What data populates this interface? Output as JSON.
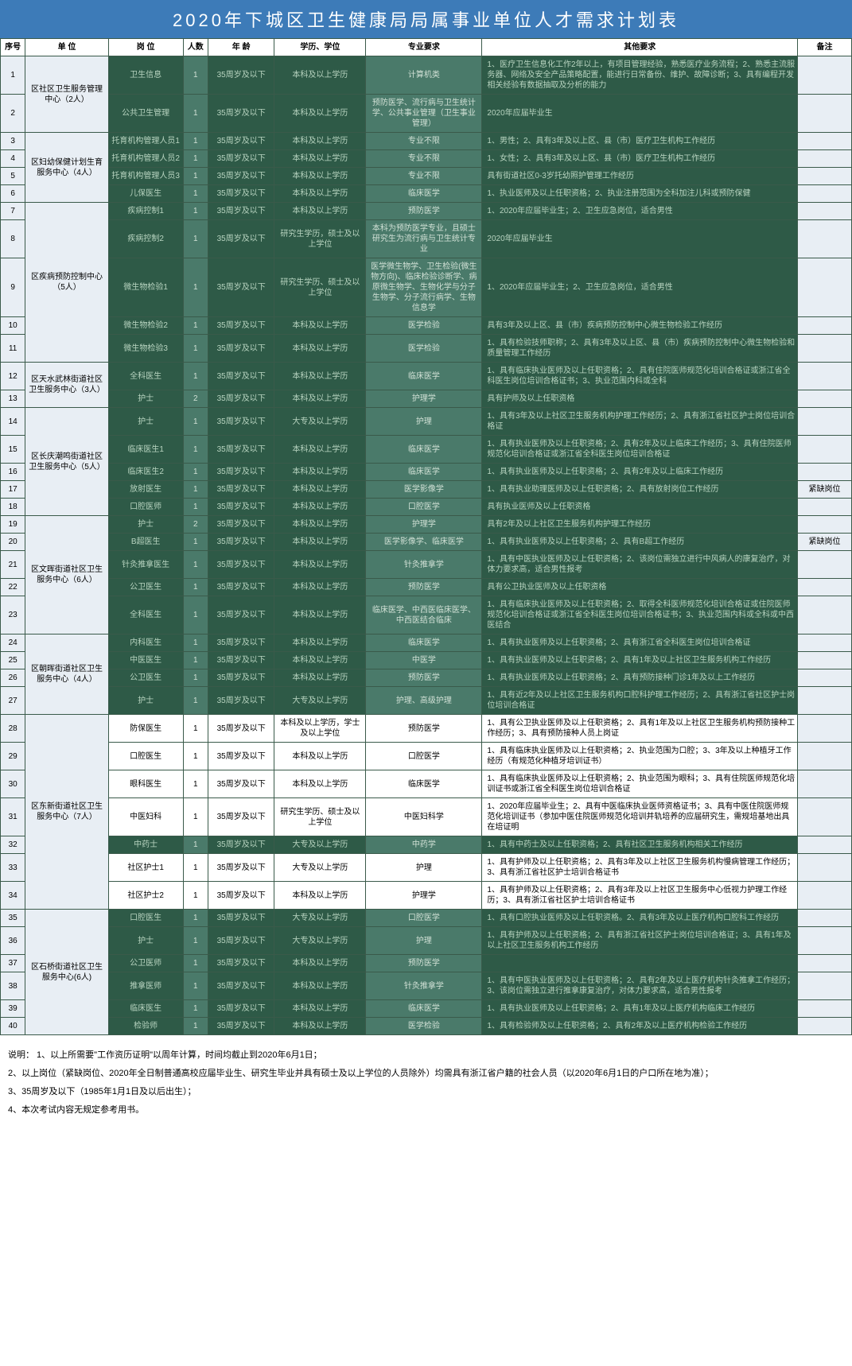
{
  "title": "2020年下城区卫生健康局局属事业单位人才需求计划表",
  "columns": [
    "序号",
    "单 位",
    "岗 位",
    "人数",
    "年 龄",
    "学历、学位",
    "专业要求",
    "其他要求",
    "备注"
  ],
  "colors": {
    "header_bg": "#3d7bb8",
    "green_bg": "#2e5a47",
    "teal_bg": "#4a7a6a",
    "green_text": "#b8d4c0",
    "teal_text": "#d0e0d5"
  },
  "rows": [
    {
      "seq": "1",
      "unit": "区社区卫生服务管理中心（2人）",
      "unit_rowspan": 2,
      "pos": "卫生信息",
      "num": "1",
      "age": "35周岁及以下",
      "edu": "本科及以上学历",
      "major": "计算机类",
      "other": "1、医疗卫生信息化工作2年以上，有项目管理经验，熟悉医疗业务流程；2、熟悉主流服务器、网络及安全产品策略配置，能进行日常备份、维护、故障诊断；3、具有编程开发相关经验有数据抽取及分析的能力",
      "remark": ""
    },
    {
      "seq": "2",
      "pos": "公共卫生管理",
      "num": "1",
      "age": "35周岁及以下",
      "edu": "本科及以上学历",
      "major": "预防医学、流行病与卫生统计学、公共事业管理（卫生事业管理）",
      "other": "2020年应届毕业生",
      "remark": ""
    },
    {
      "seq": "3",
      "unit": "区妇幼保健计划生育服务中心（4人）",
      "unit_rowspan": 4,
      "pos": "托育机构管理人员1",
      "num": "1",
      "age": "35周岁及以下",
      "edu": "本科及以上学历",
      "major": "专业不限",
      "other": "1、男性；2、具有3年及以上区、县（市）医疗卫生机构工作经历",
      "remark": ""
    },
    {
      "seq": "4",
      "pos": "托育机构管理人员2",
      "num": "1",
      "age": "35周岁及以下",
      "edu": "本科及以上学历",
      "major": "专业不限",
      "other": "1、女性；2、具有3年及以上区、县（市）医疗卫生机构工作经历",
      "remark": ""
    },
    {
      "seq": "5",
      "pos": "托育机构管理人员3",
      "num": "1",
      "age": "35周岁及以下",
      "edu": "本科及以上学历",
      "major": "专业不限",
      "other": "具有街道社区0-3岁托幼照护管理工作经历",
      "remark": ""
    },
    {
      "seq": "6",
      "pos": "儿保医生",
      "num": "1",
      "age": "35周岁及以下",
      "edu": "本科及以上学历",
      "major": "临床医学",
      "other": "1、执业医师及以上任职资格；2、执业注册范围为全科加注儿科或预防保健",
      "remark": ""
    },
    {
      "seq": "7",
      "unit": "区疾病预防控制中心（5人）",
      "unit_rowspan": 5,
      "pos": "疾病控制1",
      "num": "1",
      "age": "35周岁及以下",
      "edu": "本科及以上学历",
      "major": "预防医学",
      "other": "1、2020年应届毕业生；2、卫生应急岗位，适合男性",
      "remark": ""
    },
    {
      "seq": "8",
      "pos": "疾病控制2",
      "num": "1",
      "age": "35周岁及以下",
      "edu": "研究生学历，硕士及以上学位",
      "major": "本科为预防医学专业，且硕士研究生为流行病与卫生统计专业",
      "other": "2020年应届毕业生",
      "remark": ""
    },
    {
      "seq": "9",
      "pos": "微生物检验1",
      "num": "1",
      "age": "35周岁及以下",
      "edu": "研究生学历、硕士及以上学位",
      "major": "医学微生物学、卫生检验(微生物方向)、临床检验诊断学、病原微生物学、生物化学与分子生物学、分子流行病学、生物信息学",
      "other": "1、2020年应届毕业生；2、卫生应急岗位，适合男性",
      "remark": ""
    },
    {
      "seq": "10",
      "pos": "微生物检验2",
      "num": "1",
      "age": "35周岁及以下",
      "edu": "本科及以上学历",
      "major": "医学检验",
      "other": "具有3年及以上区、县（市）疾病预防控制中心微生物检验工作经历",
      "remark": ""
    },
    {
      "seq": "11",
      "pos": "微生物检验3",
      "num": "1",
      "age": "35周岁及以下",
      "edu": "本科及以上学历",
      "major": "医学检验",
      "other": "1、具有检验技师职称；2、具有3年及以上区、县（市）疾病预防控制中心微生物检验和质量管理工作经历",
      "remark": ""
    },
    {
      "seq": "12",
      "unit": "区天水武林街道社区卫生服务中心（3人）",
      "unit_rowspan": 2,
      "pos": "全科医生",
      "num": "1",
      "age": "35周岁及以下",
      "edu": "本科及以上学历",
      "major": "临床医学",
      "other": "1、具有临床执业医师及以上任职资格；2、具有住院医师规范化培训合格证或浙江省全科医生岗位培训合格证书；3、执业范围内科或全科",
      "remark": ""
    },
    {
      "seq": "13",
      "pos": "护士",
      "num": "2",
      "age": "35周岁及以下",
      "edu": "本科及以上学历",
      "major": "护理学",
      "other": "具有护师及以上任职资格",
      "remark": ""
    },
    {
      "seq": "14",
      "unit": "区长庆潮鸣街道社区卫生服务中心（5人）",
      "unit_rowspan": 5,
      "pos": "护士",
      "num": "1",
      "age": "35周岁及以下",
      "edu": "大专及以上学历",
      "major": "护理",
      "other": "1、具有3年及以上社区卫生服务机构护理工作经历；2、具有浙江省社区护士岗位培训合格证",
      "remark": ""
    },
    {
      "seq": "15",
      "pos": "临床医生1",
      "num": "1",
      "age": "35周岁及以下",
      "edu": "本科及以上学历",
      "major": "临床医学",
      "other": "1、具有执业医师及以上任职资格；2、具有2年及以上临床工作经历；3、具有住院医师规范化培训合格证或浙江省全科医生岗位培训合格证",
      "remark": ""
    },
    {
      "seq": "16",
      "pos": "临床医生2",
      "num": "1",
      "age": "35周岁及以下",
      "edu": "本科及以上学历",
      "major": "临床医学",
      "other": "1、具有执业医师及以上任职资格；2、具有2年及以上临床工作经历",
      "remark": ""
    },
    {
      "seq": "17",
      "pos": "放射医生",
      "num": "1",
      "age": "35周岁及以下",
      "edu": "本科及以上学历",
      "major": "医学影像学",
      "other": "1、具有执业助理医师及以上任职资格；2、具有放射岗位工作经历",
      "remark": "紧缺岗位"
    },
    {
      "seq": "18",
      "pos": "口腔医师",
      "num": "1",
      "age": "35周岁及以下",
      "edu": "本科及以上学历",
      "major": "口腔医学",
      "other": "具有执业医师及以上任职资格",
      "remark": ""
    },
    {
      "seq": "19",
      "unit": "区文晖街道社区卫生服务中心（6人）",
      "unit_rowspan": 5,
      "pos": "护士",
      "num": "2",
      "age": "35周岁及以下",
      "edu": "本科及以上学历",
      "major": "护理学",
      "other": "具有2年及以上社区卫生服务机构护理工作经历",
      "remark": ""
    },
    {
      "seq": "20",
      "pos": "B超医生",
      "num": "1",
      "age": "35周岁及以下",
      "edu": "本科及以上学历",
      "major": "医学影像学、临床医学",
      "other": "1、具有执业医师及以上任职资格；2、具有B超工作经历",
      "remark": "紧缺岗位"
    },
    {
      "seq": "21",
      "pos": "针灸推拿医生",
      "num": "1",
      "age": "35周岁及以下",
      "edu": "本科及以上学历",
      "major": "针灸推拿学",
      "other": "1、具有中医执业医师及以上任职资格；2、该岗位需独立进行中风病人的康复治疗，对体力要求高，适合男性报考",
      "remark": ""
    },
    {
      "seq": "22",
      "pos": "公卫医生",
      "num": "1",
      "age": "35周岁及以下",
      "edu": "本科及以上学历",
      "major": "预防医学",
      "other": "具有公卫执业医师及以上任职资格",
      "remark": ""
    },
    {
      "seq": "23",
      "pos": "全科医生",
      "num": "1",
      "age": "35周岁及以下",
      "edu": "本科及以上学历",
      "major": "临床医学、中西医临床医学、中西医结合临床",
      "other": "1、具有临床执业医师及以上任职资格；2、取得全科医师规范化培训合格证或住院医师规范化培训合格证或浙江省全科医生岗位培训合格证书；3、执业范围内科或全科或中西医结合",
      "remark": ""
    },
    {
      "seq": "24",
      "unit": "区朝晖街道社区卫生服务中心（4人）",
      "unit_rowspan": 4,
      "pos": "内科医生",
      "num": "1",
      "age": "35周岁及以下",
      "edu": "本科及以上学历",
      "major": "临床医学",
      "other": "1、具有执业医师及以上任职资格；2、具有浙江省全科医生岗位培训合格证",
      "remark": ""
    },
    {
      "seq": "25",
      "pos": "中医医生",
      "num": "1",
      "age": "35周岁及以下",
      "edu": "本科及以上学历",
      "major": "中医学",
      "other": "1、具有执业医师及以上任职资格；2、具有1年及以上社区卫生服务机构工作经历",
      "remark": ""
    },
    {
      "seq": "26",
      "pos": "公卫医生",
      "num": "1",
      "age": "35周岁及以下",
      "edu": "本科及以上学历",
      "major": "预防医学",
      "other": "1、具有执业医师及以上任职资格；2、具有预防接种门诊1年及以上工作经历",
      "remark": ""
    },
    {
      "seq": "27",
      "pos": "护士",
      "num": "1",
      "age": "35周岁及以下",
      "edu": "大专及以上学历",
      "major": "护理、高级护理",
      "other": "1、具有近2年及以上社区卫生服务机构口腔科护理工作经历；2、具有浙江省社区护士岗位培训合格证",
      "remark": ""
    },
    {
      "seq": "28",
      "unit": "区东新街道社区卫生服务中心（7人）",
      "unit_rowspan": 7,
      "pos": "防保医生",
      "num": "1",
      "age": "35周岁及以下",
      "edu": "本科及以上学历，学士及以上学位",
      "major": "预防医学",
      "other": "1、具有公卫执业医师及以上任职资格；2、具有1年及以上社区卫生服务机构预防接种工作经历；3、具有预防接种人员上岗证",
      "remark": "",
      "white_row": true
    },
    {
      "seq": "29",
      "pos": "口腔医生",
      "num": "1",
      "age": "35周岁及以下",
      "edu": "本科及以上学历",
      "major": "口腔医学",
      "other": "1、具有临床执业医师及以上任职资格；2、执业范围为口腔；3、3年及以上种植牙工作经历（有规范化种植牙培训证书）",
      "remark": "",
      "white_row": true
    },
    {
      "seq": "30",
      "pos": "眼科医生",
      "num": "1",
      "age": "35周岁及以下",
      "edu": "本科及以上学历",
      "major": "临床医学",
      "other": "1、具有临床执业医师及以上任职资格；2、执业范围为眼科；3、具有住院医师规范化培训证书或浙江省全科医生岗位培训合格证",
      "remark": "",
      "white_row": true
    },
    {
      "seq": "31",
      "pos": "中医妇科",
      "num": "1",
      "age": "35周岁及以下",
      "edu": "研究生学历、硕士及以上学位",
      "major": "中医妇科学",
      "other": "1、2020年应届毕业生；2、具有中医临床执业医师资格证书；3、具有中医住院医师规范化培训证书（参加中医住院医师规范化培训并轨培养的应届研究生，需规培基地出具在培证明",
      "remark": "",
      "white_row": true
    },
    {
      "seq": "32",
      "pos": "中药士",
      "num": "1",
      "age": "35周岁及以下",
      "edu": "大专及以上学历",
      "major": "中药学",
      "other": "1、具有中药士及以上任职资格；2、具有社区卫生服务机构相关工作经历",
      "remark": ""
    },
    {
      "seq": "33",
      "pos": "社区护士1",
      "num": "1",
      "age": "35周岁及以下",
      "edu": "大专及以上学历",
      "major": "护理",
      "other": "1、具有护师及以上任职资格；2、具有3年及以上社区卫生服务机构慢病管理工作经历；3、具有浙江省社区护士培训合格证书",
      "remark": "",
      "white_row": true
    },
    {
      "seq": "34",
      "pos": "社区护士2",
      "num": "1",
      "age": "35周岁及以下",
      "edu": "本科及以上学历",
      "major": "护理学",
      "other": "1、具有护师及以上任职资格；2、具有3年及以上社区卫生服务中心低视力护理工作经历；3、具有浙江省社区护士培训合格证书",
      "remark": "",
      "white_row": true
    },
    {
      "seq": "35",
      "unit": "区石桥街道社区卫生服务中心(6人)",
      "unit_rowspan": 6,
      "pos": "口腔医生",
      "num": "1",
      "age": "35周岁及以下",
      "edu": "大专及以上学历",
      "major": "口腔医学",
      "other": "1、具有口腔执业医师及以上任职资格。2、具有3年及以上医疗机构口腔科工作经历",
      "remark": ""
    },
    {
      "seq": "36",
      "pos": "护士",
      "num": "1",
      "age": "35周岁及以下",
      "edu": "大专及以上学历",
      "major": "护理",
      "other": "1、具有护师及以上任职资格；2、具有浙江省社区护士岗位培训合格证；3、具有1年及以上社区卫生服务机构工作经历",
      "remark": ""
    },
    {
      "seq": "37",
      "pos": "公卫医师",
      "num": "1",
      "age": "35周岁及以下",
      "edu": "本科及以上学历",
      "major": "预防医学",
      "other": "",
      "remark": ""
    },
    {
      "seq": "38",
      "pos": "推拿医师",
      "num": "1",
      "age": "35周岁及以下",
      "edu": "本科及以上学历",
      "major": "针灸推拿学",
      "other": "1、具有中医执业医师及以上任职资格；2、具有2年及以上医疗机构针灸推拿工作经历；3、该岗位需独立进行推拿康复治疗，对体力要求高，适合男性报考",
      "remark": ""
    },
    {
      "seq": "39",
      "pos": "临床医生",
      "num": "1",
      "age": "35周岁及以下",
      "edu": "本科及以上学历",
      "major": "临床医学",
      "other": "1、具有执业医师及以上任职资格；2、具有1年及以上医疗机构临床工作经历",
      "remark": ""
    },
    {
      "seq": "40",
      "pos": "检验师",
      "num": "1",
      "age": "35周岁及以下",
      "edu": "本科及以上学历",
      "major": "医学检验",
      "other": "1、具有检验师及以上任职资格；2、具有2年及以上医疗机构检验工作经历",
      "remark": ""
    }
  ],
  "notes": [
    "说明：  1、以上所需要\"工作资历证明\"以周年计算，时间均截止到2020年6月1日；",
    "2、以上岗位（紧缺岗位、2020年全日制普通高校应届毕业生、研究生毕业并具有硕士及以上学位的人员除外）均需具有浙江省户籍的社会人员（以2020年6月1日的户口所在地为准）；",
    "3、35周岁及以下（1985年1月1日及以后出生）；",
    "4、本次考试内容无规定参考用书。"
  ]
}
